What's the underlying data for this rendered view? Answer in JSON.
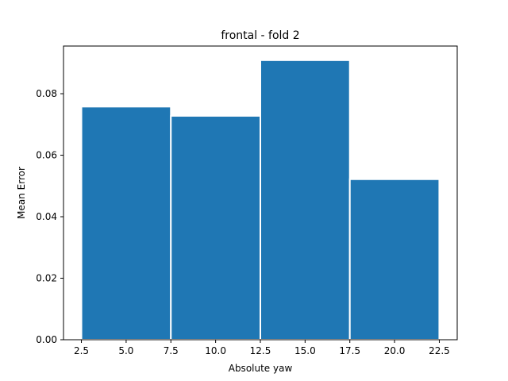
{
  "chart_data": {
    "type": "bar",
    "title": "frontal - fold 2",
    "xlabel": "Absolute yaw",
    "ylabel": "Mean Error",
    "bars": [
      {
        "x_start": 2.5,
        "x_end": 7.5,
        "value": 0.0758
      },
      {
        "x_start": 7.5,
        "x_end": 12.5,
        "value": 0.0728
      },
      {
        "x_start": 12.5,
        "x_end": 17.5,
        "value": 0.0909
      },
      {
        "x_start": 17.5,
        "x_end": 22.5,
        "value": 0.0522
      }
    ],
    "xlim": [
      1.5,
      23.5
    ],
    "ylim": [
      0,
      0.0955
    ],
    "xticks": [
      2.5,
      5.0,
      7.5,
      10.0,
      12.5,
      15.0,
      17.5,
      20.0,
      22.5
    ],
    "xtick_labels": [
      "2.5",
      "5.0",
      "7.5",
      "10.0",
      "12.5",
      "15.0",
      "17.5",
      "20.0",
      "22.5"
    ],
    "yticks": [
      0.0,
      0.02,
      0.04,
      0.06,
      0.08
    ],
    "ytick_labels": [
      "0.00",
      "0.02",
      "0.04",
      "0.06",
      "0.08"
    ],
    "bar_color": "#1f77b4",
    "grid": false,
    "legend": "none"
  }
}
